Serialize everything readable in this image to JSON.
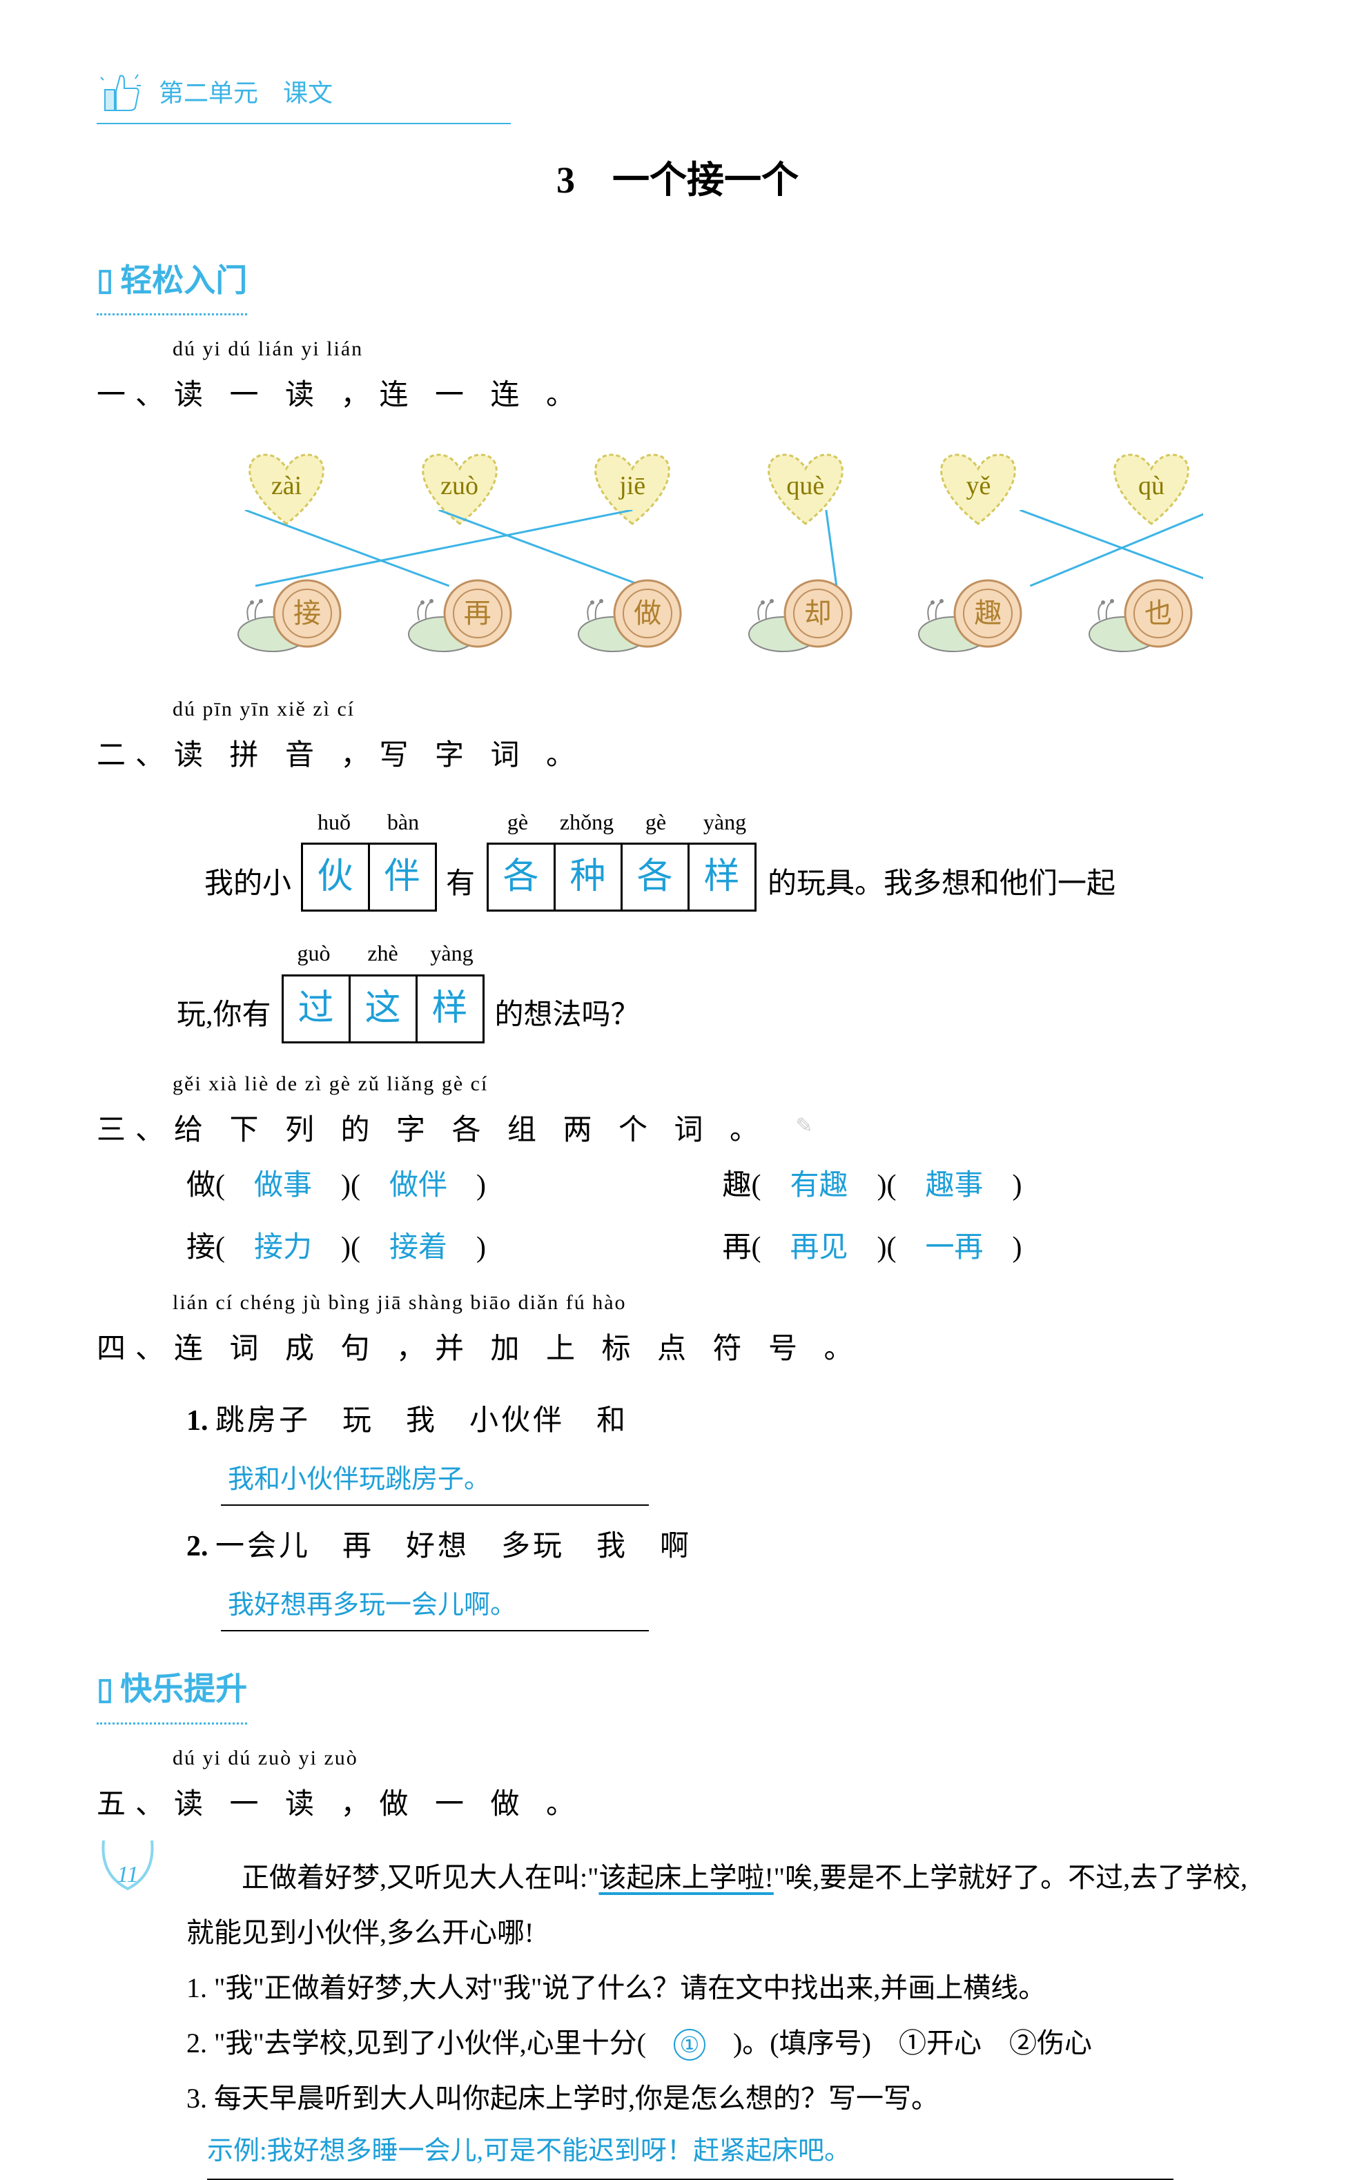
{
  "header": {
    "unit_text": "第二单元　课文"
  },
  "title": "3　一个接一个",
  "section_labels": {
    "intro": "轻松入门",
    "adv": "快乐提升"
  },
  "ex1": {
    "pinyin": "dú yi dú   lián yi lián",
    "heading": "一、读 一 读 ，连 一 连 。",
    "hearts": [
      "zài",
      "zuò",
      "jiē",
      "què",
      "yě",
      "qù"
    ],
    "snails": [
      "接",
      "再",
      "做",
      "却",
      "趣",
      "也"
    ],
    "heart_fill": "#f8f2c0",
    "heart_stroke": "#d4c85e",
    "snail_shell": "#f5d9b8",
    "snail_body": "#d7ead0",
    "line_color": "#3cb4e6",
    "connections": [
      [
        0,
        1
      ],
      [
        1,
        2
      ],
      [
        2,
        0
      ],
      [
        3,
        3
      ],
      [
        4,
        5
      ],
      [
        5,
        4
      ]
    ]
  },
  "ex2": {
    "pinyin": "dú pīn yīn   xiě zì cí",
    "heading": "二、读 拼 音 ，写 字 词 。",
    "line1_pre": "我的小",
    "group1_pinyin": [
      "huǒ",
      "bàn"
    ],
    "group1_chars": [
      "伙",
      "伴"
    ],
    "line1_mid": "有",
    "group2_pinyin": [
      "gè",
      "zhǒng",
      "gè",
      "yàng"
    ],
    "group2_chars": [
      "各",
      "种",
      "各",
      "样"
    ],
    "line1_post": "的玩具。我多想和他们一起",
    "line2_pre": "玩,你有",
    "group3_pinyin": [
      "guò",
      "zhè",
      "yàng"
    ],
    "group3_chars": [
      "过",
      "这",
      "样"
    ],
    "line2_post": "的想法吗？"
  },
  "ex3": {
    "pinyin": "gěi xià liè de zì gè zǔ liǎng gè cí",
    "heading": "三、给 下 列 的 字 各 组 两 个 词 。",
    "rows": [
      {
        "l_char": "做",
        "l_a1": "做事",
        "l_a2": "做伴",
        "r_char": "趣",
        "r_a1": "有趣",
        "r_a2": "趣事"
      },
      {
        "l_char": "接",
        "l_a1": "接力",
        "l_a2": "接着",
        "r_char": "再",
        "r_a1": "再见",
        "r_a2": "一再"
      }
    ]
  },
  "ex4": {
    "pinyin": "lián cí chéng jù   bìng jiā shàng biāo diǎn fú hào",
    "heading": "四、连 词 成 句 ，并 加 上 标 点 符 号 。",
    "items": [
      {
        "num": "1.",
        "words": "跳房子　玩　我　小伙伴　和",
        "answer": "我和小伙伴玩跳房子。"
      },
      {
        "num": "2.",
        "words": "一会儿　再　好想　多玩　我　啊",
        "answer": "我好想再多玩一会儿啊。"
      }
    ]
  },
  "ex5": {
    "pinyin": "dú yi dú   zuò yi zuò",
    "heading": "五、读 一 读 ，做 一 做 。",
    "passage_a": "正做着好梦,又听见大人在叫:\"",
    "passage_b": "该起床上学啦!",
    "passage_c": "\"唉,要是不上学就好了。不过,去了学校,就能见到小伙伴,多么开心哪!",
    "q1": "1. \"我\"正做着好梦,大人对\"我\"说了什么？请在文中找出来,并画上横线。",
    "q2_a": "2. \"我\"去学校,见到了小伙伴,心里十分(　",
    "q2_ans": "①",
    "q2_b": "　)。(填序号)　①开心　②伤心",
    "q3": "3. 每天早晨听到大人叫你起床上学时,你是怎么想的？写一写。",
    "q3_ans": "示例:我好想多睡一会儿,可是不能迟到呀！赶紧起床吧。"
  },
  "page_number": "11",
  "colors": {
    "primary": "#3cb4e6",
    "answer": "#1e9fd8"
  }
}
